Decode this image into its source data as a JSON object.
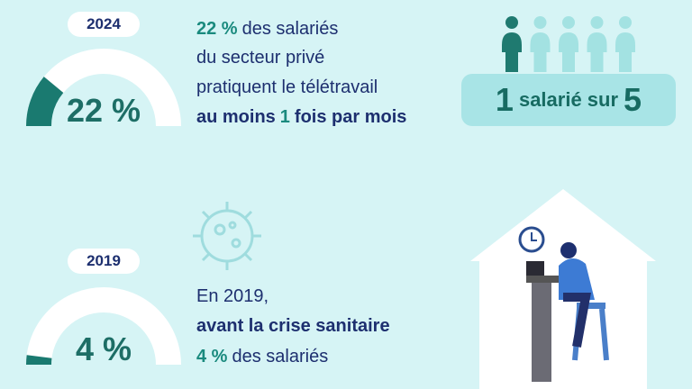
{
  "gauge_range": [
    0,
    100
  ],
  "sections": [
    {
      "year": "2024",
      "gauge": {
        "value": 22,
        "label": "22 %"
      },
      "lines": [
        [
          {
            "text": "22 %",
            "weight": "bold",
            "color": "#1a8a7e"
          },
          {
            "text": "des salariés",
            "weight": "normal",
            "color": "#1d2f6f"
          }
        ],
        [
          {
            "text": "du secteur privé",
            "weight": "normal",
            "color": "#1d2f6f"
          }
        ],
        [
          {
            "text": "pratiquent le télétravail",
            "weight": "normal",
            "color": "#1d2f6f"
          }
        ],
        [
          {
            "text": "au moins",
            "weight": "bold",
            "color": "#1d2f6f"
          },
          {
            "text": "1",
            "weight": "bold",
            "color": "#1a8a7e"
          },
          {
            "text": "fois par mois",
            "weight": "bold",
            "color": "#1d2f6f"
          }
        ]
      ]
    },
    {
      "year": "2019",
      "gauge": {
        "value": 4,
        "label": "4 %"
      },
      "lines": [
        [
          {
            "text": "En 2019,",
            "weight": "normal",
            "color": "#1d2f6f"
          }
        ],
        [
          {
            "text": "avant la crise sanitaire",
            "weight": "bold",
            "color": "#1d2f6f"
          }
        ],
        [
          {
            "text": "4 %",
            "weight": "bold",
            "color": "#1a8a7e"
          },
          {
            "text": "des salariés",
            "weight": "normal",
            "color": "#1d2f6f"
          }
        ]
      ]
    }
  ],
  "ratio": {
    "count": 1,
    "text": "salarié sur",
    "of": 5,
    "highlight_color": "#1f7a70",
    "other_color": "#a3e2e2"
  }
}
